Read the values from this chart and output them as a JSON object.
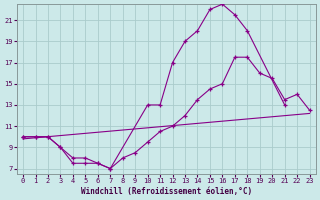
{
  "xlabel": "Windchill (Refroidissement éolien,°C)",
  "bg_color": "#cce9e9",
  "grid_color": "#aacccc",
  "line_color": "#880088",
  "xlim": [
    -0.5,
    23.5
  ],
  "ylim": [
    6.5,
    22.5
  ],
  "yticks": [
    7,
    9,
    11,
    13,
    15,
    17,
    19,
    21
  ],
  "xticks": [
    0,
    1,
    2,
    3,
    4,
    5,
    6,
    7,
    8,
    9,
    10,
    11,
    12,
    13,
    14,
    15,
    16,
    17,
    18,
    19,
    20,
    21,
    22,
    23
  ],
  "curve1_x": [
    0,
    1,
    2,
    3,
    4,
    5,
    6,
    7,
    10,
    11,
    12,
    13,
    14,
    15,
    16,
    17,
    18,
    21
  ],
  "curve1_y": [
    10.0,
    10.0,
    10.0,
    9.0,
    7.5,
    7.5,
    7.5,
    7.0,
    13.0,
    13.0,
    17.0,
    19.0,
    20.0,
    22.0,
    22.5,
    21.5,
    20.0,
    13.0
  ],
  "curve2_x": [
    0,
    1,
    2,
    3,
    4,
    5,
    6,
    7,
    8,
    9,
    10,
    11,
    12,
    13,
    14,
    15,
    16,
    17,
    18,
    19,
    20,
    21,
    22,
    23
  ],
  "curve2_y": [
    10.0,
    10.0,
    10.0,
    9.0,
    8.0,
    8.0,
    7.5,
    7.0,
    8.0,
    8.5,
    9.5,
    10.5,
    11.0,
    12.0,
    13.5,
    14.5,
    15.0,
    17.5,
    17.5,
    16.0,
    15.5,
    13.5,
    14.0,
    12.5
  ],
  "line3_x": [
    0,
    23
  ],
  "line3_y": [
    9.8,
    12.2
  ]
}
